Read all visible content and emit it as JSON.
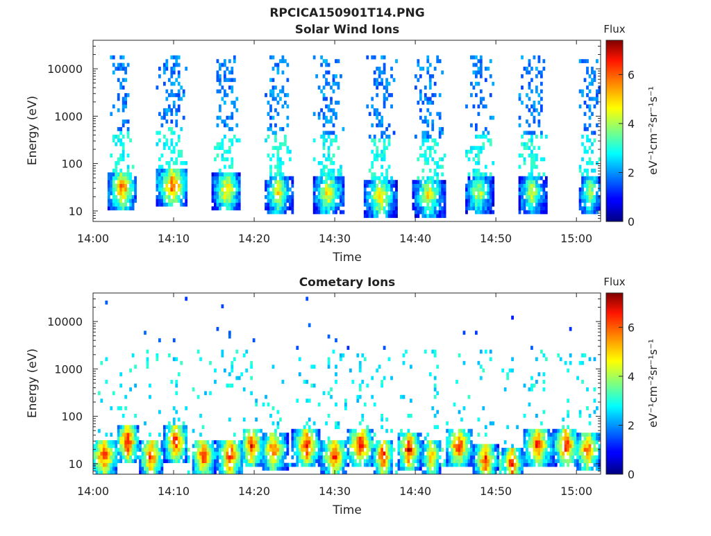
{
  "figure": {
    "title": "RPCICA150901T14.PNG"
  },
  "colors": {
    "colormap": "jet",
    "axis": "#262626",
    "background": "#ffffff"
  },
  "chart_data": [
    {
      "type": "heatmap",
      "title": "Solar Wind Ions",
      "xlabel": "Time",
      "ylabel": "Energy (eV)",
      "x_ticks": [
        "14:00",
        "14:10",
        "14:20",
        "14:30",
        "14:40",
        "14:50",
        "15:00"
      ],
      "x_tick_minutes": [
        0,
        10,
        20,
        30,
        40,
        50,
        60
      ],
      "xlim_minutes": [
        0,
        63
      ],
      "y_scale": "log",
      "y_ticks": [
        "10",
        "100",
        "1000",
        "10000"
      ],
      "y_tick_values": [
        10,
        100,
        1000,
        10000
      ],
      "ylim": [
        6,
        40000
      ],
      "colorbar": {
        "label": "Flux",
        "units": "eV⁻¹cm⁻²sr⁻¹s⁻¹",
        "ticks": [
          "0",
          "2",
          "4",
          "6"
        ],
        "tick_values": [
          0,
          2,
          4,
          6
        ],
        "range": [
          0,
          7.4
        ],
        "colormap": "jet"
      },
      "bursts": [
        {
          "start_minute": 2.0,
          "end_minute": 5.0,
          "peak_minute": 4.2,
          "peak_flux": 6.5,
          "peak_energy_eV": 30
        },
        {
          "start_minute": 8.0,
          "end_minute": 11.5,
          "peak_minute": 10.5,
          "peak_flux": 6.8,
          "peak_energy_eV": 35
        },
        {
          "start_minute": 15.0,
          "end_minute": 18.0,
          "peak_minute": 17.0,
          "peak_flux": 5.8,
          "peak_energy_eV": 28
        },
        {
          "start_minute": 21.5,
          "end_minute": 24.5,
          "peak_minute": 23.0,
          "peak_flux": 5.0,
          "peak_energy_eV": 25
        },
        {
          "start_minute": 27.5,
          "end_minute": 31.0,
          "peak_minute": 29.0,
          "peak_flux": 5.2,
          "peak_energy_eV": 25
        },
        {
          "start_minute": 34.0,
          "end_minute": 37.5,
          "peak_minute": 35.5,
          "peak_flux": 5.5,
          "peak_energy_eV": 20
        },
        {
          "start_minute": 40.0,
          "end_minute": 43.5,
          "peak_minute": 41.5,
          "peak_flux": 5.2,
          "peak_energy_eV": 22
        },
        {
          "start_minute": 46.5,
          "end_minute": 49.5,
          "peak_minute": 47.5,
          "peak_flux": 4.8,
          "peak_energy_eV": 25
        },
        {
          "start_minute": 53.0,
          "end_minute": 56.0,
          "peak_minute": 54.5,
          "peak_flux": 4.6,
          "peak_energy_eV": 25
        },
        {
          "start_minute": 60.5,
          "end_minute": 63.0,
          "peak_minute": 61.5,
          "peak_flux": 4.6,
          "peak_energy_eV": 25
        }
      ]
    },
    {
      "type": "heatmap",
      "title": "Cometary Ions",
      "xlabel": "Time",
      "ylabel": "Energy (eV)",
      "x_ticks": [
        "14:00",
        "14:10",
        "14:20",
        "14:30",
        "14:40",
        "14:50",
        "15:00"
      ],
      "x_tick_minutes": [
        0,
        10,
        20,
        30,
        40,
        50,
        60
      ],
      "xlim_minutes": [
        0,
        63
      ],
      "y_scale": "log",
      "y_ticks": [
        "10",
        "100",
        "1000",
        "10000"
      ],
      "y_tick_values": [
        10,
        100,
        1000,
        10000
      ],
      "ylim": [
        6,
        40000
      ],
      "colorbar": {
        "label": "Flux",
        "units": "eV⁻¹cm⁻²sr⁻¹s⁻¹",
        "ticks": [
          "0",
          "2",
          "4",
          "6"
        ],
        "tick_values": [
          0,
          2,
          4,
          6
        ],
        "range": [
          0,
          7.4
        ],
        "colormap": "jet"
      },
      "bursts": [
        {
          "start_minute": 0.0,
          "end_minute": 3.0,
          "peak_minute": 0.8,
          "peak_flux": 7.0,
          "peak_energy_eV": 15
        },
        {
          "start_minute": 3.0,
          "end_minute": 5.5,
          "peak_minute": 4.3,
          "peak_flux": 7.2,
          "peak_energy_eV": 30
        },
        {
          "start_minute": 6.0,
          "end_minute": 8.5,
          "peak_minute": 7.0,
          "peak_flux": 7.0,
          "peak_energy_eV": 15
        },
        {
          "start_minute": 9.0,
          "end_minute": 11.5,
          "peak_minute": 10.5,
          "peak_flux": 7.0,
          "peak_energy_eV": 30
        },
        {
          "start_minute": 12.5,
          "end_minute": 15.0,
          "peak_minute": 13.5,
          "peak_flux": 7.0,
          "peak_energy_eV": 15
        },
        {
          "start_minute": 15.5,
          "end_minute": 18.5,
          "peak_minute": 17.0,
          "peak_flux": 6.9,
          "peak_energy_eV": 15
        },
        {
          "start_minute": 18.5,
          "end_minute": 21.0,
          "peak_minute": 19.5,
          "peak_flux": 7.0,
          "peak_energy_eV": 25
        },
        {
          "start_minute": 21.0,
          "end_minute": 24.0,
          "peak_minute": 22.0,
          "peak_flux": 6.5,
          "peak_energy_eV": 20
        },
        {
          "start_minute": 25.0,
          "end_minute": 28.0,
          "peak_minute": 26.5,
          "peak_flux": 7.0,
          "peak_energy_eV": 25
        },
        {
          "start_minute": 28.5,
          "end_minute": 31.5,
          "peak_minute": 30.0,
          "peak_flux": 6.8,
          "peak_energy_eV": 15
        },
        {
          "start_minute": 31.5,
          "end_minute": 35.0,
          "peak_minute": 33.0,
          "peak_flux": 7.0,
          "peak_energy_eV": 25
        },
        {
          "start_minute": 35.0,
          "end_minute": 37.0,
          "peak_minute": 36.0,
          "peak_flux": 7.0,
          "peak_energy_eV": 15
        },
        {
          "start_minute": 38.0,
          "end_minute": 40.5,
          "peak_minute": 39.2,
          "peak_flux": 7.2,
          "peak_energy_eV": 20
        },
        {
          "start_minute": 41.0,
          "end_minute": 43.0,
          "peak_minute": 42.0,
          "peak_flux": 6.0,
          "peak_energy_eV": 15
        },
        {
          "start_minute": 44.0,
          "end_minute": 47.0,
          "peak_minute": 45.0,
          "peak_flux": 7.0,
          "peak_energy_eV": 25
        },
        {
          "start_minute": 47.5,
          "end_minute": 50.0,
          "peak_minute": 48.5,
          "peak_flux": 6.8,
          "peak_energy_eV": 12
        },
        {
          "start_minute": 51.0,
          "end_minute": 53.0,
          "peak_minute": 52.0,
          "peak_flux": 7.0,
          "peak_energy_eV": 10
        },
        {
          "start_minute": 53.5,
          "end_minute": 57.0,
          "peak_minute": 55.0,
          "peak_flux": 6.8,
          "peak_energy_eV": 25
        },
        {
          "start_minute": 57.5,
          "end_minute": 60.0,
          "peak_minute": 58.5,
          "peak_flux": 7.2,
          "peak_energy_eV": 25
        },
        {
          "start_minute": 60.0,
          "end_minute": 63.0,
          "peak_minute": 61.0,
          "peak_flux": 6.5,
          "peak_energy_eV": 20
        }
      ]
    }
  ]
}
